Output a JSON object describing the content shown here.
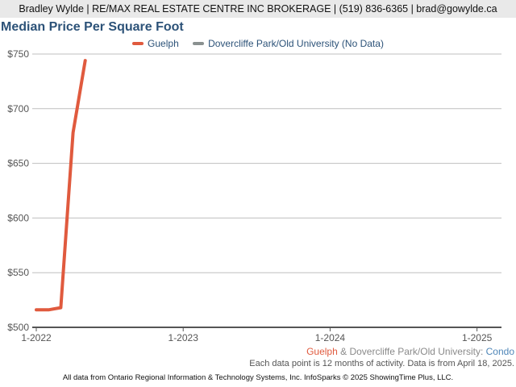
{
  "header": {
    "text": "Bradley Wylde | RE/MAX REAL ESTATE CENTRE INC BROKERAGE | (519) 836-6365 | brad@gowylde.ca"
  },
  "colors": {
    "guelph": "#e05a3e",
    "dovercliffe": "#8a9190",
    "title": "#2c5278",
    "grid": "#bfbfbf",
    "axis": "#555555"
  },
  "chart_data": {
    "type": "line",
    "title": "Median Price Per Square Foot",
    "xlabel": "",
    "ylabel": "",
    "ylim": [
      500,
      750
    ],
    "xlim": [
      "2022-01",
      "2025-03"
    ],
    "yticks": [
      500,
      550,
      600,
      650,
      700,
      750
    ],
    "ytick_labels": [
      "$500",
      "$550",
      "$600",
      "$650",
      "$700",
      "$750"
    ],
    "xticks": [
      "2022-01",
      "2023-01",
      "2024-01",
      "2025-01"
    ],
    "xtick_labels": [
      "1-2022",
      "1-2023",
      "1-2024",
      "1-2025"
    ],
    "grid": true,
    "legend_position": "top-center",
    "series": [
      {
        "name": "Guelph",
        "color": "#e05a3e",
        "x": [
          "2022-01",
          "2022-02",
          "2022-03",
          "2022-04",
          "2022-05"
        ],
        "y": [
          516,
          516,
          518,
          678,
          744
        ]
      },
      {
        "name": "Dovercliffe Park/Old University (No Data)",
        "color": "#8a9190",
        "x": [],
        "y": []
      }
    ]
  },
  "footnote": {
    "series_a": "Guelph",
    "ampersand": " & ",
    "series_b": "Dovercliffe Park/Old University",
    "colon": ": ",
    "category": "Condo",
    "note": "Each data point is 12 months of activity. Data is from April 18, 2025."
  },
  "footer": {
    "text": "All data from Ontario Regional Information & Technology Systems, Inc. InfoSparks © 2025 ShowingTime Plus, LLC."
  }
}
